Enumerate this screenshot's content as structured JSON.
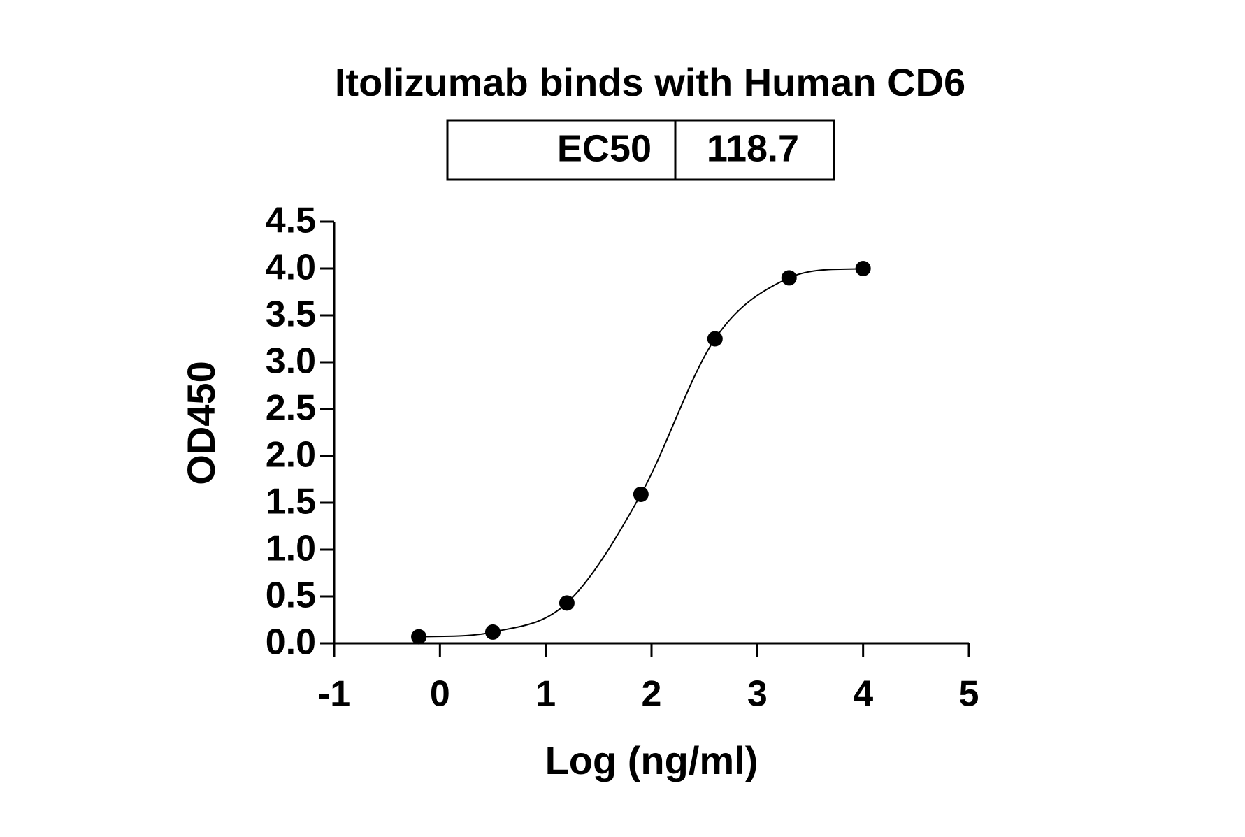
{
  "chart_data": {
    "type": "scatter",
    "title": "Itolizumab binds with Human CD6",
    "ec50_table": {
      "label": "EC50",
      "value": 118.7
    },
    "x_label": "Log (ng/ml)",
    "y_label": "OD450",
    "x": [
      -0.2,
      0.5,
      1.2,
      1.9,
      2.6,
      3.3,
      4.0
    ],
    "values": [
      0.07,
      0.12,
      0.43,
      1.59,
      3.25,
      3.9,
      4.0
    ],
    "color": "#000000",
    "xlim": [
      -1,
      5
    ],
    "xticks": [
      -1,
      0,
      1,
      2,
      3,
      4,
      5
    ],
    "ylim": [
      0,
      4.5
    ],
    "yticks": [
      {
        "value": 0,
        "label": "0.0"
      },
      {
        "value": 0.5,
        "label": "0.5"
      },
      {
        "value": 1,
        "label": "1.0"
      },
      {
        "value": 1.5,
        "label": "1.5"
      },
      {
        "value": 2,
        "label": "2.0"
      },
      {
        "value": 2.5,
        "label": "2.5"
      },
      {
        "value": 3,
        "label": "3.0"
      },
      {
        "value": 3.5,
        "label": "3.5"
      },
      {
        "value": 4,
        "label": "4.0"
      },
      {
        "value": 4.5,
        "label": "4.5"
      }
    ],
    "fit_curve": true
  }
}
